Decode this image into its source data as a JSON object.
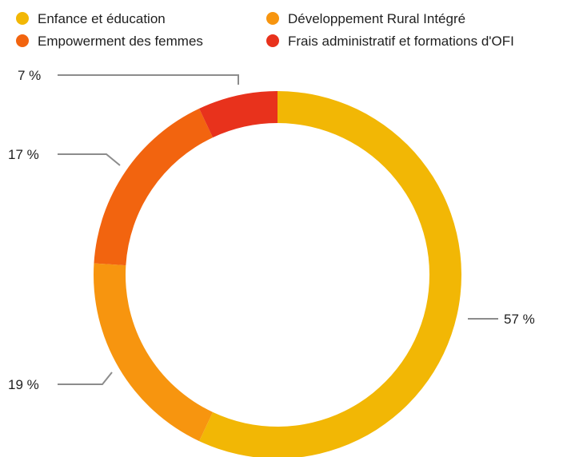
{
  "chart_data": {
    "type": "pie",
    "donut": true,
    "legend_position": "top",
    "categories": [
      "Enfance et éducation",
      "Développement Rural Intégré",
      "Empowerment des femmes",
      "Frais administratif  et formations d'OFI"
    ],
    "values": [
      57,
      19,
      17,
      7
    ],
    "labels": [
      "57 %",
      "19 %",
      "17 %",
      "7 %"
    ],
    "colors": [
      "#f2b705",
      "#f7950f",
      "#f2640f",
      "#e8321c"
    ]
  }
}
